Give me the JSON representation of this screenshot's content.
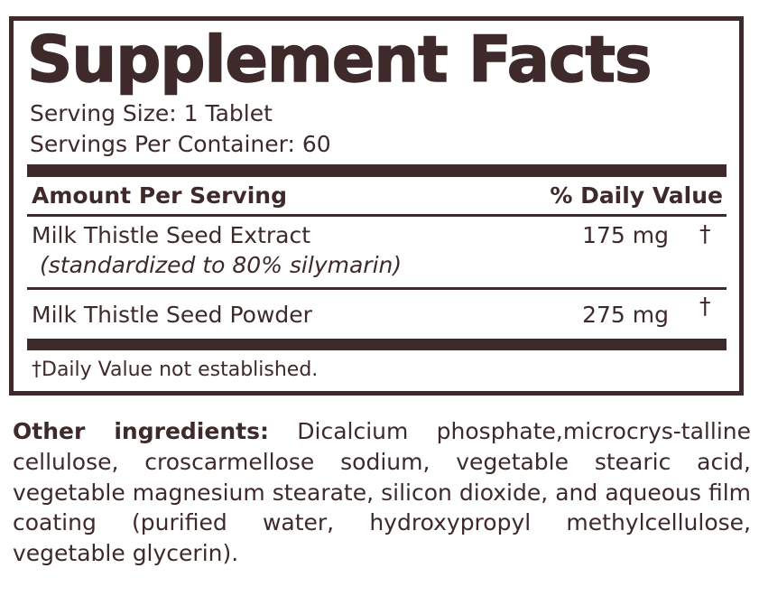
{
  "title": "Supplement Facts",
  "serving_size": "Serving Size: 1 Tablet",
  "servings_per_container": "Servings Per Container: 60",
  "header": {
    "amount": "Amount Per Serving",
    "daily_value": "% Daily Value"
  },
  "rows": [
    {
      "name": "Milk Thistle Seed Extract",
      "note": "(standardized to 80% silymarin)",
      "amount": "175 mg",
      "dv": "†"
    },
    {
      "name": "Milk Thistle Seed Powder",
      "amount": "275 mg",
      "dv": "†"
    }
  ],
  "footnote": "†Daily Value not established.",
  "other": {
    "label": "Other ingredients:",
    "text": " Dicalcium phosphate,microcrys-talline cellulose, croscarmellose sodium, vegetable stearic acid, vegetable magnesium stearate, silicon dioxide, and aqueous film coating (purified water, hydroxypropyl methylcellulose, vegetable glycerin)."
  },
  "colors": {
    "ink": "#3e2a2a"
  }
}
